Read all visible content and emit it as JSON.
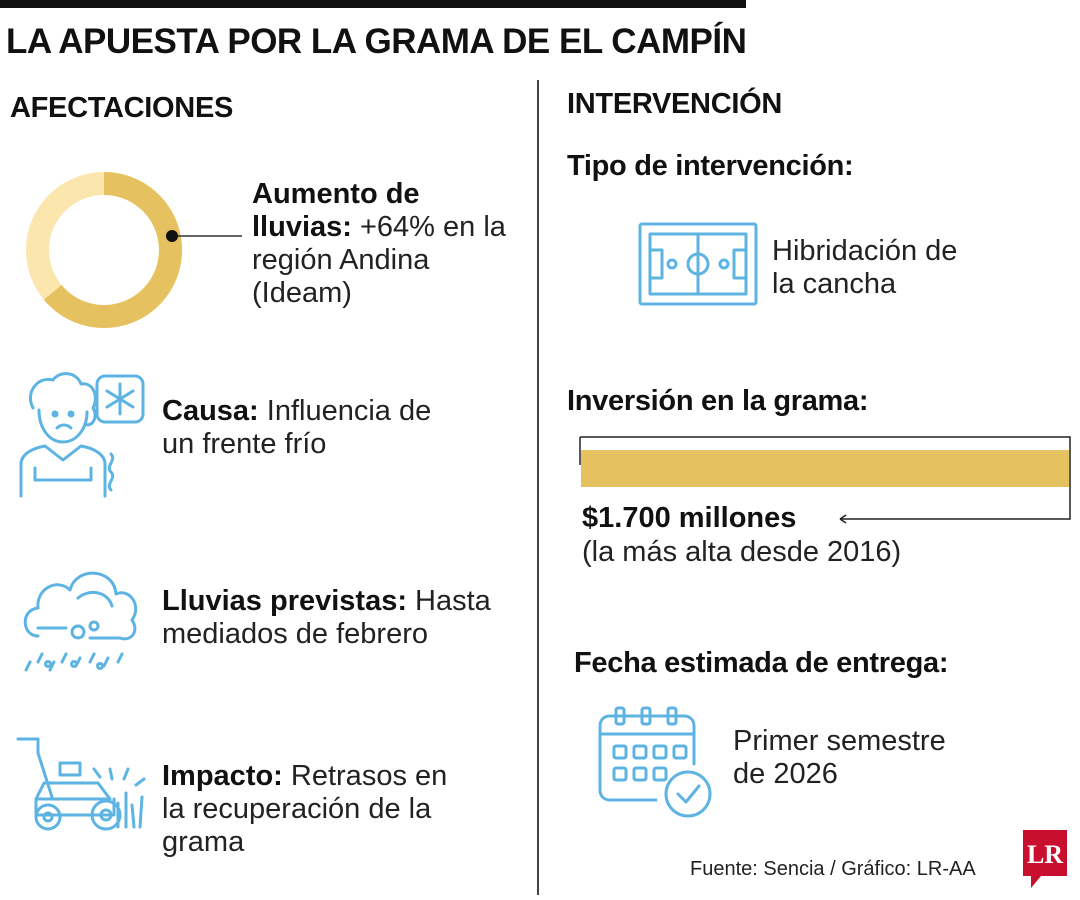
{
  "title": "LA APUESTA POR LA GRAMA DE EL CAMPÍN",
  "left": {
    "heading": "AFECTACIONES",
    "rain": {
      "label_bold": "Aumento de lluvias:",
      "label_rest": " +64% en la región Andina (Ideam)",
      "percent": 64
    },
    "cause": {
      "bold": "Causa:",
      "text": " Influencia de un frente frío"
    },
    "forecast": {
      "bold": "Lluvias previstas:",
      "text": " Hasta mediados de febrero"
    },
    "impact": {
      "bold": "Impacto:",
      "text": " Retrasos en la recuperación de la grama"
    }
  },
  "right": {
    "heading": "INTERVENCIÓN",
    "type_heading": "Tipo de intervención:",
    "type_value": "Hibridación de la cancha",
    "investment_heading": "Inversión en la grama:",
    "investment_value": "$1.700 millones",
    "investment_note": "(la más alta desde 2016)",
    "delivery_heading": "Fecha estimada de entrega:",
    "delivery_value": "Primer semestre de 2026"
  },
  "source": "Fuente: Sencia / Gráfico: LR-AA",
  "logo": "LR",
  "colors": {
    "gold": "#e6c15f",
    "gold_light": "#fbe6ad",
    "blue": "#5db4e3",
    "red": "#c8102e"
  }
}
